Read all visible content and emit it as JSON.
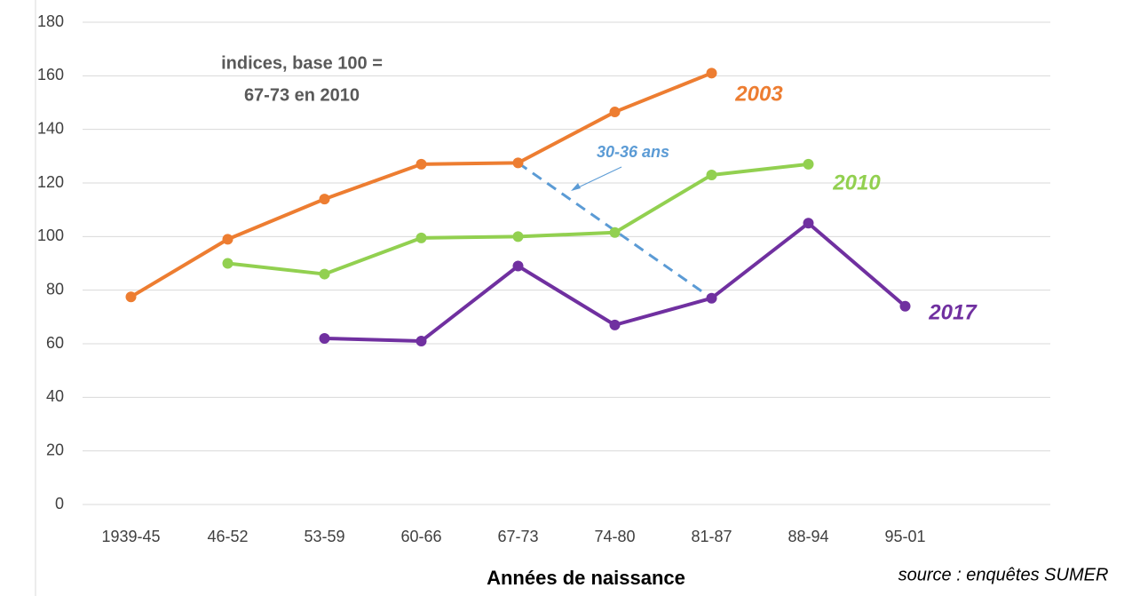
{
  "chart_data": {
    "type": "line",
    "annotation": [
      "indices, base 100 =",
      "67-73 en 2010"
    ],
    "cohort_label": "30-36 ans",
    "x_label": "Années de naissance",
    "source": "source : enquêtes SUMER",
    "categories": [
      "1939-45",
      "46-52",
      "53-59",
      "60-66",
      "67-73",
      "74-80",
      "81-87",
      "88-94",
      "95-01",
      null
    ],
    "series": [
      {
        "name": "2003",
        "color": "#ED7D31",
        "values": [
          77.5,
          99,
          114,
          127,
          127.5,
          146.5,
          161,
          null,
          null,
          null
        ]
      },
      {
        "name": "2010",
        "color": "#92D050",
        "values": [
          null,
          90,
          86,
          99.5,
          100,
          101.5,
          123,
          127,
          null,
          null
        ]
      },
      {
        "name": "2017",
        "color": "#7030A0",
        "values": [
          null,
          null,
          62,
          61,
          89,
          67,
          77,
          105,
          74,
          null
        ]
      }
    ],
    "cohort_color": "#5B9BD5",
    "ylim": [
      0,
      180
    ],
    "yticks": [
      0,
      20,
      40,
      60,
      80,
      100,
      120,
      140,
      160,
      180
    ],
    "grid": true
  }
}
